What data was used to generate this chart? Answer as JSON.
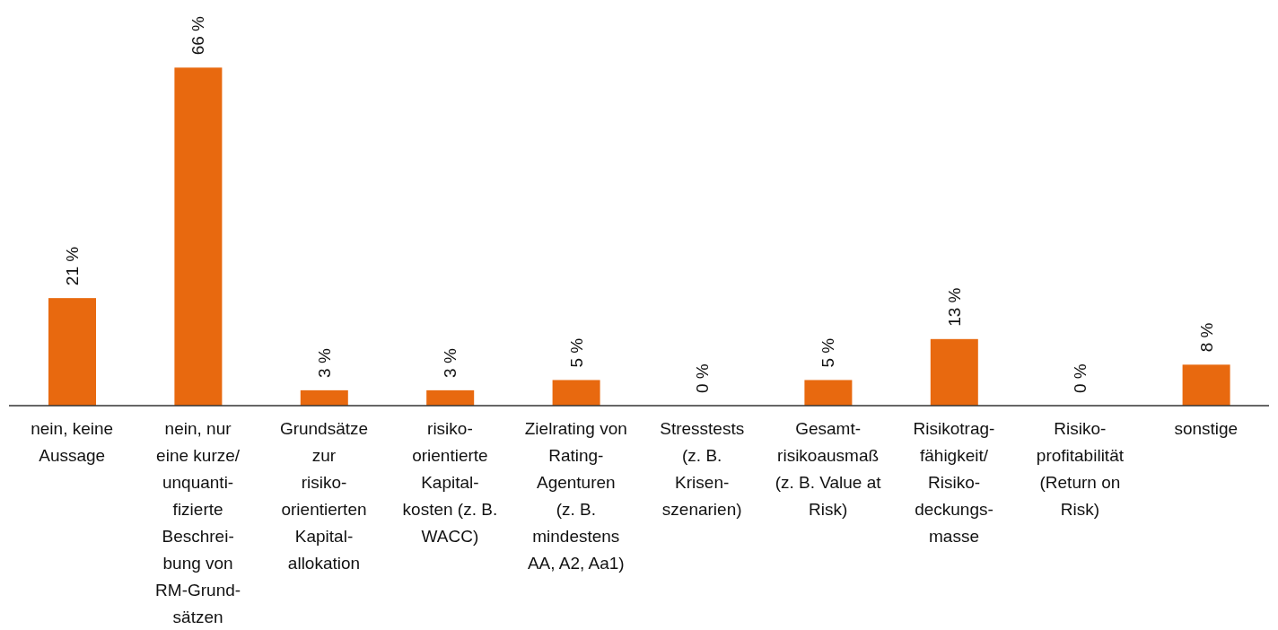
{
  "chart_data": {
    "type": "bar",
    "categories": [
      "nein, keine\nAussage",
      "nein, nur\neine kurze/\nunquanti-\nfizierte\nBeschrei-\nbung von\nRM-Grund-\nsätzen",
      "Grundsätze\nzur\nrisiko-\norientierten\nKapital-\nallokation",
      "risiko-\norientierte\nKapital-\nkosten (z. B.\nWACC)",
      "Zielrating von\nRating-\nAgenturen\n(z. B.\nmindestens\nAA, A2, Aa1)",
      "Stresstests\n(z. B.\nKrisen-\nszenarien)",
      "Gesamt-\nrisikoausmaß\n(z. B. Value at\nRisk)",
      "Risikotrag-\nfähigkeit/\nRisiko-\ndeckungs-\nmasse",
      "Risiko-\nprofitabilität\n(Return on\nRisk)",
      "sonstige"
    ],
    "values": [
      21,
      66,
      3,
      3,
      5,
      0,
      5,
      13,
      0,
      8
    ],
    "value_labels": [
      "21 %",
      "66 %",
      "3 %",
      "3 %",
      "5 %",
      "0 %",
      "5 %",
      "13 %",
      "0 %",
      "8 %"
    ],
    "color": "#e8690f"
  }
}
